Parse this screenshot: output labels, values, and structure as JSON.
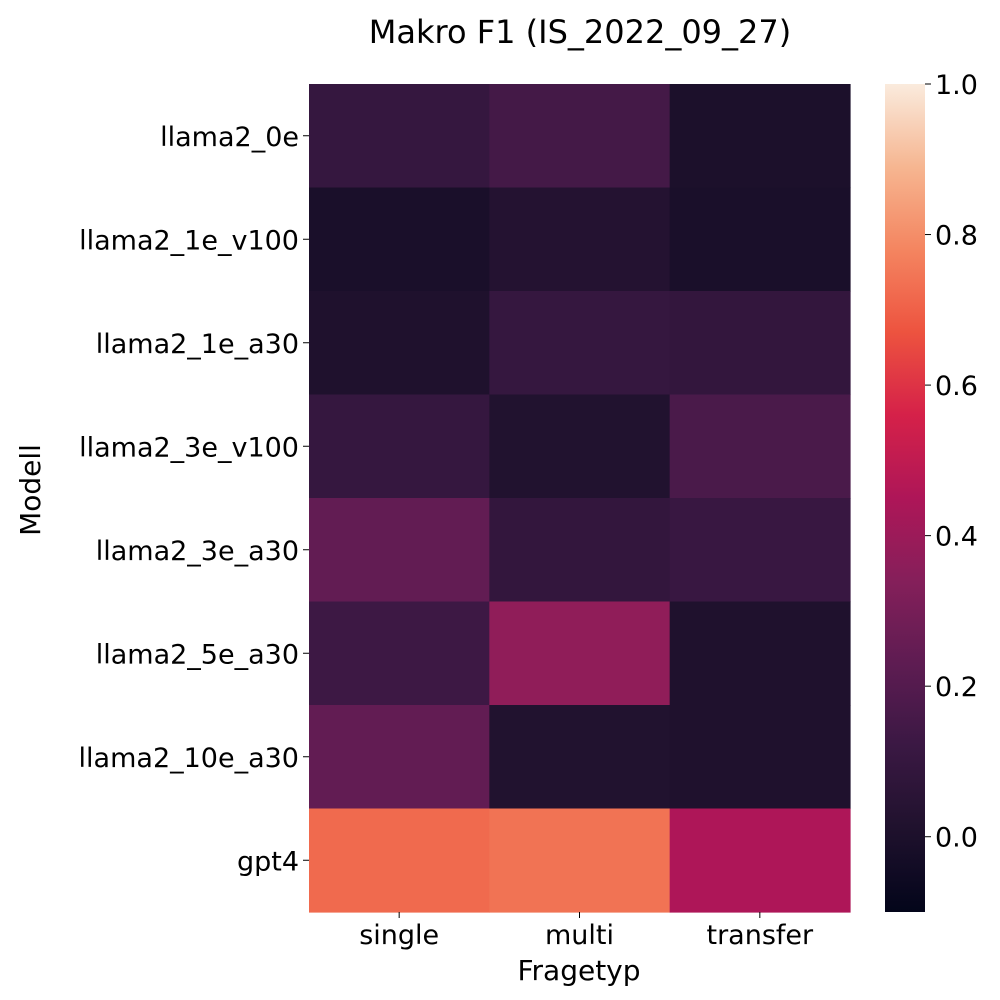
{
  "chart_data": {
    "type": "heatmap",
    "title": "Makro F1 (IS_2022_09_27)",
    "xlabel": "Fragetyp",
    "ylabel": "Modell",
    "x_categories": [
      "single",
      "multi",
      "transfer"
    ],
    "y_categories": [
      "llama2_0e",
      "llama2_1e_v100",
      "llama2_1e_a30",
      "llama2_3e_v100",
      "llama2_3e_a30",
      "llama2_5e_a30",
      "llama2_10e_a30",
      "gpt4"
    ],
    "values": [
      [
        0.1,
        0.15,
        0.0
      ],
      [
        -0.01,
        0.03,
        -0.01
      ],
      [
        0.01,
        0.1,
        0.09
      ],
      [
        0.1,
        0.02,
        0.17
      ],
      [
        0.24,
        0.09,
        0.11
      ],
      [
        0.13,
        0.37,
        0.01
      ],
      [
        0.24,
        0.02,
        0.01
      ],
      [
        0.72,
        0.74,
        0.45
      ]
    ],
    "colorbar": {
      "range": [
        -0.1,
        1.0
      ],
      "ticks": [
        0.0,
        0.2,
        0.4,
        0.6,
        0.8,
        1.0
      ],
      "tick_labels": [
        "0.0",
        "0.2",
        "0.4",
        "0.6",
        "0.8",
        "1.0"
      ],
      "colormap": "rocket"
    }
  }
}
